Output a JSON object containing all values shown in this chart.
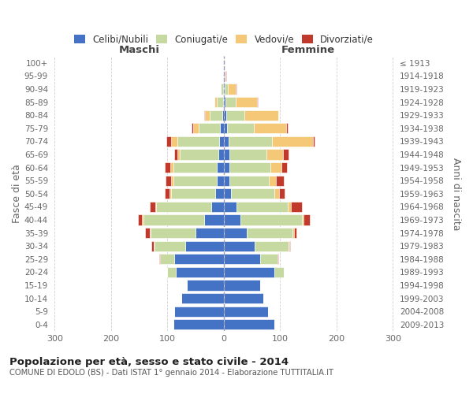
{
  "age_groups": [
    "0-4",
    "5-9",
    "10-14",
    "15-19",
    "20-24",
    "25-29",
    "30-34",
    "35-39",
    "40-44",
    "45-49",
    "50-54",
    "55-59",
    "60-64",
    "65-69",
    "70-74",
    "75-79",
    "80-84",
    "85-89",
    "90-94",
    "95-99",
    "100+"
  ],
  "birth_years": [
    "2009-2013",
    "2004-2008",
    "1999-2003",
    "1994-1998",
    "1989-1993",
    "1984-1988",
    "1979-1983",
    "1974-1978",
    "1969-1973",
    "1964-1968",
    "1959-1963",
    "1954-1958",
    "1949-1953",
    "1944-1948",
    "1939-1943",
    "1934-1938",
    "1929-1933",
    "1924-1928",
    "1919-1923",
    "1914-1918",
    "≤ 1913"
  ],
  "males": {
    "celibi": [
      90,
      88,
      75,
      65,
      85,
      88,
      68,
      50,
      35,
      22,
      15,
      12,
      12,
      10,
      8,
      7,
      3,
      2,
      1,
      0,
      0
    ],
    "coniugati": [
      0,
      0,
      0,
      0,
      15,
      25,
      55,
      80,
      108,
      98,
      78,
      78,
      78,
      68,
      75,
      38,
      22,
      10,
      4,
      0,
      0
    ],
    "vedovi": [
      0,
      0,
      0,
      0,
      0,
      0,
      1,
      2,
      2,
      2,
      3,
      3,
      5,
      5,
      10,
      10,
      8,
      5,
      0,
      0,
      0
    ],
    "divorziati": [
      0,
      0,
      0,
      0,
      1,
      2,
      5,
      8,
      8,
      10,
      9,
      10,
      10,
      5,
      9,
      3,
      2,
      0,
      0,
      0,
      0
    ]
  },
  "females": {
    "nubili": [
      90,
      78,
      70,
      65,
      90,
      65,
      55,
      40,
      30,
      22,
      12,
      10,
      10,
      10,
      8,
      5,
      4,
      3,
      2,
      1,
      0
    ],
    "coniugate": [
      0,
      0,
      0,
      0,
      16,
      30,
      60,
      82,
      108,
      92,
      78,
      70,
      72,
      65,
      78,
      48,
      32,
      18,
      5,
      0,
      0
    ],
    "vedove": [
      0,
      0,
      0,
      0,
      0,
      0,
      1,
      2,
      3,
      5,
      8,
      12,
      20,
      30,
      72,
      58,
      60,
      38,
      14,
      2,
      1
    ],
    "divorziate": [
      0,
      0,
      0,
      0,
      0,
      1,
      2,
      5,
      12,
      20,
      10,
      15,
      10,
      10,
      3,
      2,
      1,
      1,
      1,
      1,
      0
    ]
  },
  "colors": {
    "celibi": "#4472c4",
    "coniugati": "#c5d9a0",
    "vedovi": "#f5c878",
    "divorziati": "#c0392b"
  },
  "title": "Popolazione per età, sesso e stato civile - 2014",
  "subtitle": "COMUNE DI EDOLO (BS) - Dati ISTAT 1° gennaio 2014 - Elaborazione TUTTITALIA.IT",
  "label_maschi": "Maschi",
  "label_femmine": "Femmine",
  "ylabel_left": "Fasce di età",
  "ylabel_right": "Anni di nascita",
  "xlim": 305,
  "bg_color": "#ffffff",
  "grid_color": "#d0d0d0",
  "legend_labels": [
    "Celibi/Nubili",
    "Coniugati/e",
    "Vedovi/e",
    "Divorziati/e"
  ]
}
